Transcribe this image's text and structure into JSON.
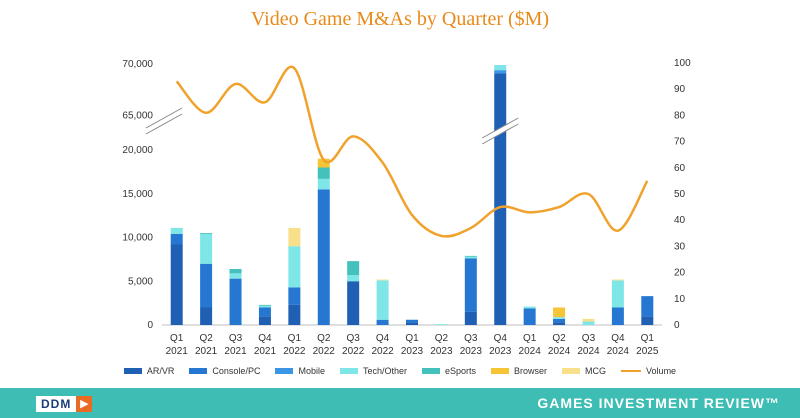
{
  "title": "Video Game M&As by Quarter ($M)",
  "footer": {
    "logo": "DDM",
    "logo_arrow": "▶",
    "brand": "GAMES INVESTMENT REVIEW™"
  },
  "chart_data": {
    "type": "bar",
    "stacked": true,
    "title": "Video Game M&As by Quarter ($M)",
    "categories": [
      "Q1 2021",
      "Q2 2021",
      "Q3 2021",
      "Q4 2021",
      "Q1 2022",
      "Q2 2022",
      "Q3 2022",
      "Q4 2022",
      "Q1 2023",
      "Q2 2023",
      "Q3 2023",
      "Q4 2023",
      "Q1 2024",
      "Q2 2024",
      "Q3 2024",
      "Q4 2024",
      "Q1 2025"
    ],
    "left_axis": {
      "broken": true,
      "lower_range": [
        0,
        20000
      ],
      "lower_ticks": [
        "0",
        "5,000",
        "10,000",
        "15,000",
        "20,000"
      ],
      "upper_range": [
        62000,
        70000
      ],
      "upper_ticks": [
        "65,000",
        "70,000"
      ]
    },
    "right_axis": {
      "range": [
        0,
        100
      ],
      "ticks": [
        "0",
        "10",
        "20",
        "30",
        "40",
        "50",
        "60",
        "70",
        "80",
        "90",
        "100"
      ]
    },
    "series": [
      {
        "name": "AR/VR",
        "color": "#1f5fb4",
        "values": [
          9200,
          2000,
          0,
          1000,
          2300,
          0,
          5000,
          0,
          300,
          0,
          1500,
          69100,
          0,
          300,
          0,
          0,
          1000
        ]
      },
      {
        "name": "Console/PC",
        "color": "#2677d1",
        "values": [
          1200,
          5000,
          5300,
          1000,
          2000,
          15500,
          0,
          600,
          300,
          0,
          6100,
          0,
          1900,
          400,
          0,
          2000,
          2300
        ]
      },
      {
        "name": "Mobile",
        "color": "#3b96e6",
        "values": [
          0,
          0,
          0,
          0,
          0,
          0,
          0,
          0,
          0,
          0,
          0,
          300,
          0,
          0,
          0,
          0,
          0
        ]
      },
      {
        "name": "Tech/Other",
        "color": "#7fe6e8",
        "values": [
          700,
          3400,
          600,
          200,
          4700,
          1200,
          700,
          4500,
          0,
          100,
          200,
          500,
          200,
          200,
          400,
          3100,
          0
        ]
      },
      {
        "name": "eSports",
        "color": "#44c1bd",
        "values": [
          0,
          100,
          500,
          100,
          0,
          1300,
          1600,
          0,
          0,
          0,
          100,
          0,
          0,
          0,
          0,
          0,
          0
        ]
      },
      {
        "name": "Browser",
        "color": "#f5c535",
        "values": [
          0,
          0,
          0,
          0,
          0,
          1000,
          0,
          0,
          0,
          0,
          0,
          0,
          0,
          1100,
          0,
          0,
          0
        ]
      },
      {
        "name": "MCG",
        "color": "#f8e08a",
        "values": [
          0,
          0,
          0,
          0,
          2100,
          0,
          0,
          100,
          0,
          0,
          0,
          0,
          0,
          0,
          300,
          100,
          0
        ]
      }
    ],
    "line": {
      "name": "Volume",
      "axis": "right",
      "color": "#f0a22c",
      "values": [
        93,
        81,
        92,
        85,
        98,
        63,
        72,
        62,
        42,
        34,
        37,
        45,
        43,
        45,
        50,
        36,
        55
      ]
    },
    "legend_position": "bottom"
  }
}
